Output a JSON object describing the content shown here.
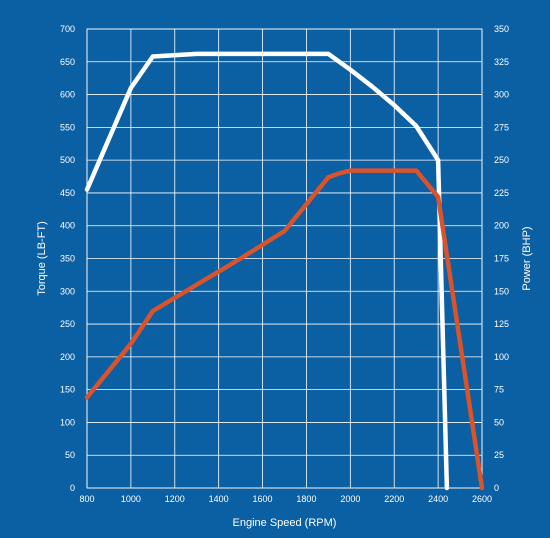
{
  "colors": {
    "background": "#0b5fa3",
    "grid": "#ffffff",
    "torque": "#ffffff",
    "power": "#d9532b"
  },
  "chart_data": {
    "type": "line",
    "xlabel": "Engine Speed (RPM)",
    "ylabel_left": "Torque (LB-FT)",
    "ylabel_right": "Power (BHP)",
    "xlim": [
      800,
      2600
    ],
    "ylim_left": [
      0,
      700
    ],
    "ylim_right": [
      0,
      350
    ],
    "x_ticks": [
      800,
      1000,
      1200,
      1400,
      1600,
      1800,
      2000,
      2200,
      2400,
      2600
    ],
    "y_left_ticks": [
      0,
      50,
      100,
      150,
      200,
      250,
      300,
      350,
      400,
      450,
      500,
      550,
      600,
      650,
      700
    ],
    "y_right_ticks": [
      0,
      25,
      50,
      75,
      100,
      125,
      150,
      175,
      200,
      225,
      250,
      275,
      300,
      325,
      350
    ],
    "grid": true,
    "series": [
      {
        "axis": "left",
        "color": "#ffffff",
        "x": [
          800,
          1000,
          1100,
          1300,
          1500,
          1700,
          1900,
          2000,
          2100,
          2200,
          2300,
          2400,
          2440
        ],
        "values": [
          455,
          610,
          658,
          662,
          662,
          662,
          662,
          638,
          612,
          584,
          552,
          500,
          0
        ]
      },
      {
        "axis": "right",
        "color": "#d9532b",
        "x": [
          800,
          1000,
          1100,
          1300,
          1500,
          1700,
          1900,
          1950,
          2000,
          2100,
          2200,
          2300,
          2400,
          2600
        ],
        "values": [
          69,
          110,
          135,
          155,
          175,
          196,
          237,
          240,
          242,
          242,
          242,
          242,
          222,
          0
        ]
      }
    ]
  }
}
